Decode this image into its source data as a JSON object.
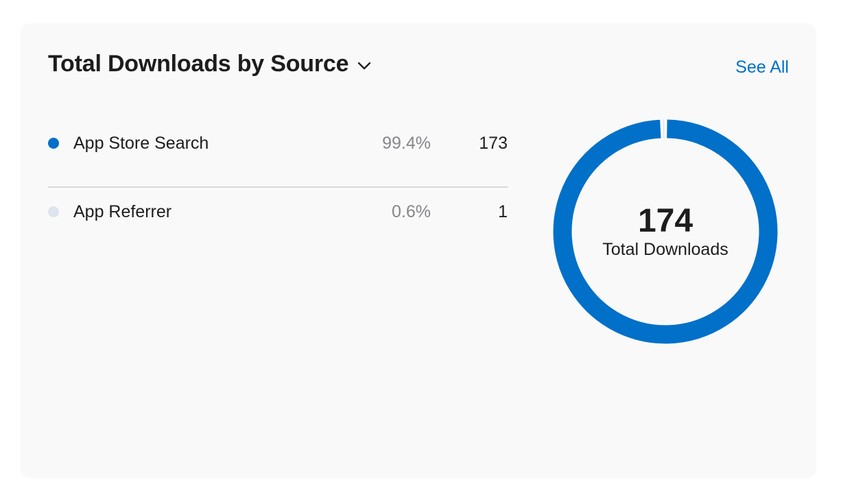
{
  "header": {
    "title": "Total Downloads by Source",
    "see_all_label": "See All"
  },
  "icons": {
    "dropdown": "chevron-down-icon"
  },
  "chart_data": {
    "type": "pie",
    "title": "Total Downloads by Source",
    "categories": [
      "App Store Search",
      "App Referrer"
    ],
    "values": [
      173,
      1
    ],
    "percentages": [
      "99.4%",
      "0.6%"
    ],
    "colors": [
      "#0070c9",
      "#dde4ee"
    ],
    "center": {
      "value": "174",
      "label": "Total Downloads"
    },
    "legend_placement": "left"
  }
}
